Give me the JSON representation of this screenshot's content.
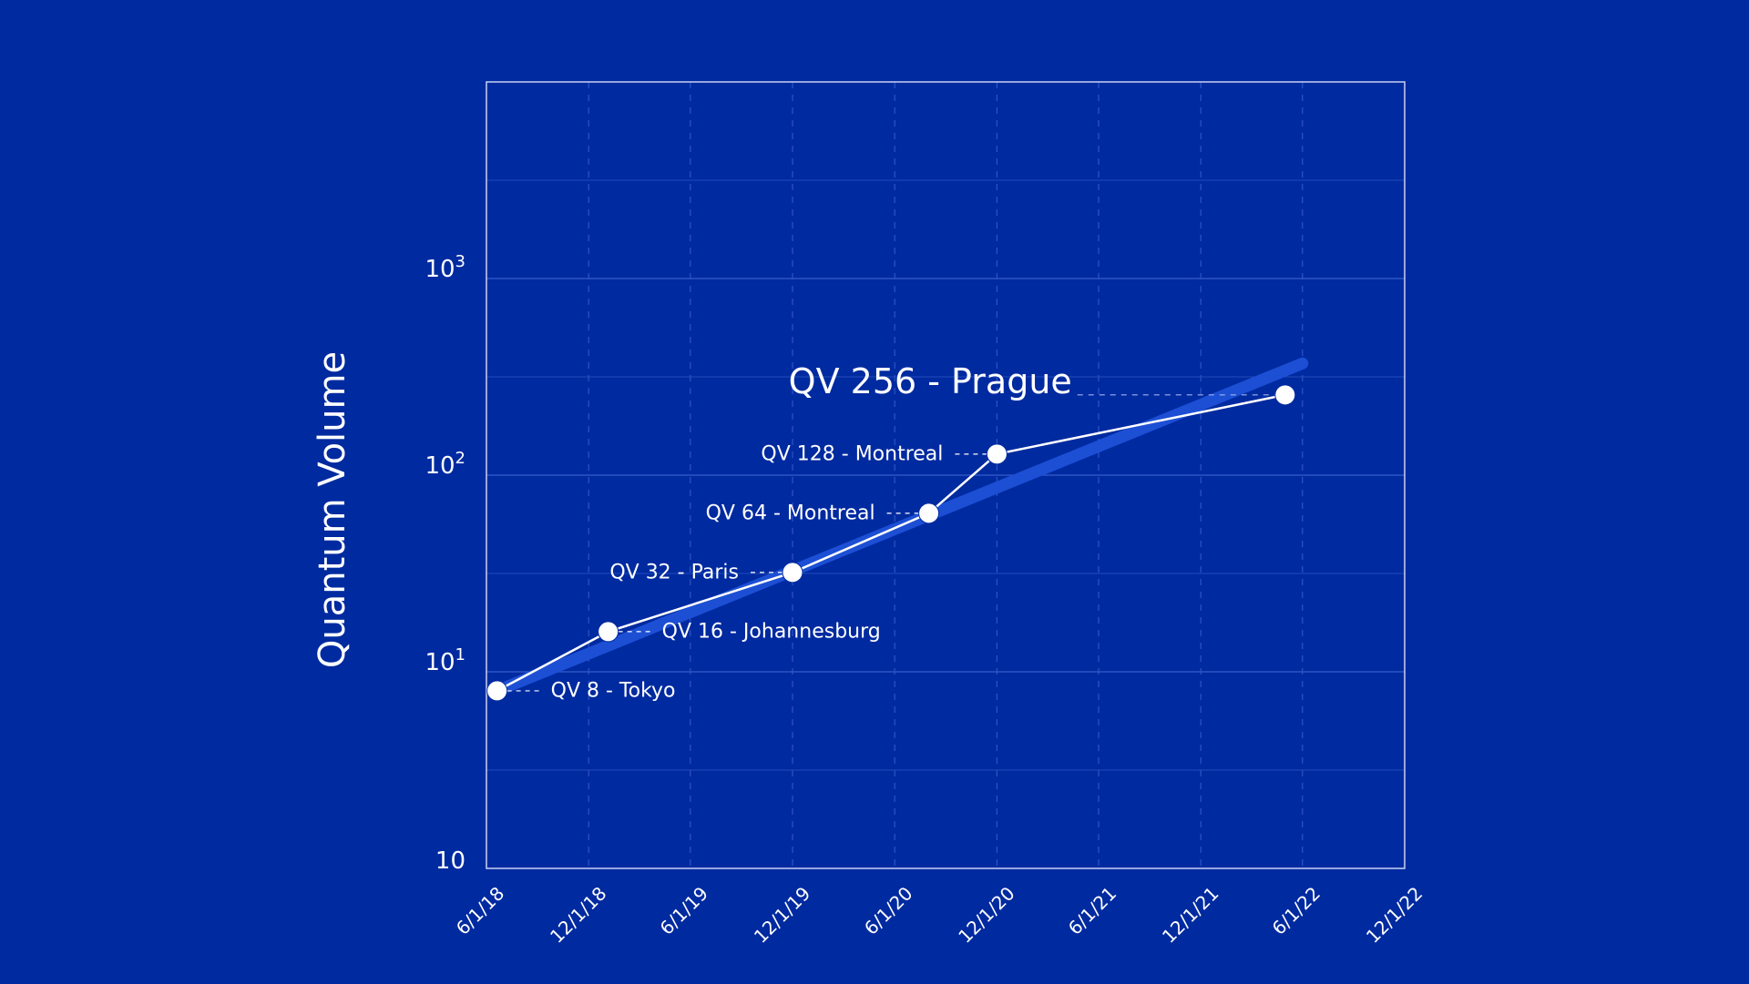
{
  "chart_data": {
    "type": "line",
    "title": "",
    "xlabel": "",
    "ylabel": "Quantum Volume",
    "y_scale": "log",
    "grid": true,
    "x_tick_labels": [
      "6/1/18",
      "12/1/18",
      "6/1/19",
      "12/1/19",
      "6/1/20",
      "12/1/20",
      "6/1/21",
      "12/1/21",
      "6/1/22",
      "12/1/22"
    ],
    "x_range": [
      "2018-06-01",
      "2022-12-01"
    ],
    "y_range": [
      1,
      10000
    ],
    "y_tick_labels": [
      {
        "value": 1,
        "base": "10",
        "exp": ""
      },
      {
        "value": 10,
        "base": "10",
        "exp": "1"
      },
      {
        "value": 100,
        "base": "10",
        "exp": "2"
      },
      {
        "value": 1000,
        "base": "10",
        "exp": "3"
      }
    ],
    "series": [
      {
        "points": [
          {
            "date": "2018-06-20",
            "value": 8,
            "label": "QV 8 - Tokyo"
          },
          {
            "date": "2019-01-05",
            "value": 16,
            "label": "QV 16 - Johannesburg"
          },
          {
            "date": "2019-12-01",
            "value": 32,
            "label": "QV 32 - Paris"
          },
          {
            "date": "2020-08-01",
            "value": 64,
            "label": "QV 64 - Montreal"
          },
          {
            "date": "2020-12-01",
            "value": 128,
            "label": "QV 128 - Montreal"
          },
          {
            "date": "2022-05-01",
            "value": 256,
            "label": "QV 256 - Prague"
          }
        ]
      }
    ],
    "trend": {
      "start": {
        "date": "2018-06-20",
        "value": 8
      },
      "end": {
        "date": "2022-06-01",
        "value": 370
      }
    },
    "colors": {
      "background": "#002aa0",
      "plot_border": "#c8d2f2",
      "grid": "#2e54c4",
      "trend": "#1c4fd4",
      "line": "#ffffff",
      "point": "#ffffff",
      "text": "#ffffff"
    }
  }
}
